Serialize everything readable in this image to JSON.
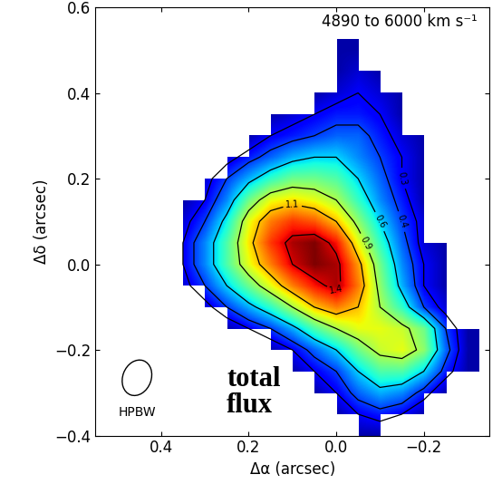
{
  "chart_data": {
    "type": "heatmap",
    "title": "4890 to 6000 km s⁻¹",
    "annotations": [
      "HPBW",
      "total\nflux"
    ],
    "x_label": "Δα (arcsec)",
    "y_label": "Δδ (arcsec)",
    "xlim": [
      0.55,
      -0.35
    ],
    "ylim": [
      -0.4,
      0.6
    ],
    "xticks": [
      0.4,
      0.2,
      {
        "value": 0.0,
        "label": "0.0"
      },
      {
        "value": -0.2,
        "label": "−0.2"
      }
    ],
    "yticks": [
      {
        "value": -0.4,
        "label": "−0.4"
      },
      {
        "value": -0.2,
        "label": "−0.2"
      },
      {
        "value": 0.0,
        "label": "0.0"
      },
      0.2,
      0.4,
      0.6
    ],
    "x": [
      0.4,
      0.35,
      0.3,
      0.25,
      0.2,
      0.15,
      0.1,
      0.05,
      0.0,
      -0.05,
      -0.1,
      -0.15,
      -0.2,
      -0.25,
      -0.3
    ],
    "y": [
      0.5,
      0.45,
      0.4,
      0.35,
      0.3,
      0.25,
      0.2,
      0.15,
      0.1,
      0.05,
      0.0,
      -0.05,
      -0.1,
      -0.15,
      -0.2,
      -0.25,
      -0.3,
      -0.35,
      -0.4
    ],
    "cells": [
      [
        null,
        null,
        null,
        null,
        null,
        null,
        0.2,
        null,
        0.2,
        0.2,
        null,
        null,
        null,
        null,
        null
      ],
      [
        null,
        null,
        null,
        null,
        null,
        null,
        null,
        null,
        0.2,
        0.25,
        0.2,
        null,
        null,
        null,
        null
      ],
      [
        null,
        null,
        null,
        null,
        null,
        null,
        null,
        0.2,
        0.25,
        0.3,
        0.25,
        0.2,
        null,
        null,
        null
      ],
      [
        null,
        null,
        null,
        null,
        null,
        0.2,
        0.25,
        0.3,
        0.35,
        0.35,
        0.3,
        0.2,
        null,
        null,
        null
      ],
      [
        null,
        null,
        null,
        null,
        0.2,
        0.3,
        0.35,
        0.4,
        0.45,
        0.45,
        0.35,
        0.25,
        0.2,
        null,
        null
      ],
      [
        null,
        null,
        null,
        0.25,
        0.35,
        0.45,
        0.55,
        0.6,
        0.6,
        0.5,
        0.4,
        0.3,
        0.2,
        null,
        null
      ],
      [
        null,
        null,
        0.25,
        0.4,
        0.55,
        0.7,
        0.8,
        0.8,
        0.75,
        0.6,
        0.45,
        0.3,
        0.2,
        null,
        null
      ],
      [
        null,
        0.2,
        0.3,
        0.5,
        0.8,
        1.0,
        1.05,
        1.0,
        0.9,
        0.7,
        0.5,
        0.35,
        0.2,
        null,
        null
      ],
      [
        null,
        0.25,
        0.4,
        0.65,
        1.0,
        1.2,
        1.3,
        1.25,
        1.1,
        0.85,
        0.6,
        0.4,
        0.25,
        null,
        null
      ],
      [
        null,
        0.3,
        0.5,
        0.75,
        1.05,
        1.3,
        1.45,
        1.5,
        1.35,
        1.0,
        0.7,
        0.45,
        0.25,
        0.2,
        null
      ],
      [
        null,
        0.3,
        0.5,
        0.75,
        1.0,
        1.2,
        1.4,
        1.5,
        1.45,
        1.15,
        0.8,
        0.5,
        0.3,
        0.2,
        null
      ],
      [
        null,
        0.25,
        0.4,
        0.6,
        0.8,
        1.0,
        1.2,
        1.35,
        1.45,
        1.2,
        0.85,
        0.55,
        0.3,
        0.2,
        null
      ],
      [
        null,
        null,
        0.25,
        0.4,
        0.55,
        0.7,
        0.9,
        1.1,
        1.2,
        1.1,
        0.9,
        0.7,
        0.4,
        0.25,
        null
      ],
      [
        null,
        null,
        null,
        0.2,
        0.3,
        0.4,
        0.55,
        0.75,
        0.9,
        1.0,
        1.0,
        0.95,
        0.8,
        0.4,
        0.2
      ],
      [
        null,
        null,
        null,
        null,
        null,
        0.2,
        0.3,
        0.45,
        0.6,
        0.8,
        0.95,
        1.0,
        0.85,
        0.45,
        0.2
      ],
      [
        null,
        null,
        null,
        null,
        null,
        null,
        0.2,
        0.3,
        0.4,
        0.6,
        0.75,
        0.75,
        0.6,
        0.35,
        0.2
      ],
      [
        null,
        null,
        null,
        null,
        null,
        null,
        null,
        0.2,
        0.3,
        0.45,
        0.55,
        0.5,
        0.35,
        0.2,
        null
      ],
      [
        null,
        null,
        null,
        null,
        null,
        null,
        null,
        null,
        0.2,
        0.3,
        0.35,
        0.3,
        0.2,
        null,
        null
      ],
      [
        null,
        null,
        null,
        null,
        null,
        null,
        null,
        null,
        null,
        0.2,
        0.2,
        null,
        null,
        null,
        null
      ]
    ],
    "zlim": [
      0.15,
      1.5
    ],
    "contour_levels": [
      0.3,
      0.4,
      0.6,
      0.9,
      1.1,
      1.4
    ],
    "color": "jet"
  }
}
